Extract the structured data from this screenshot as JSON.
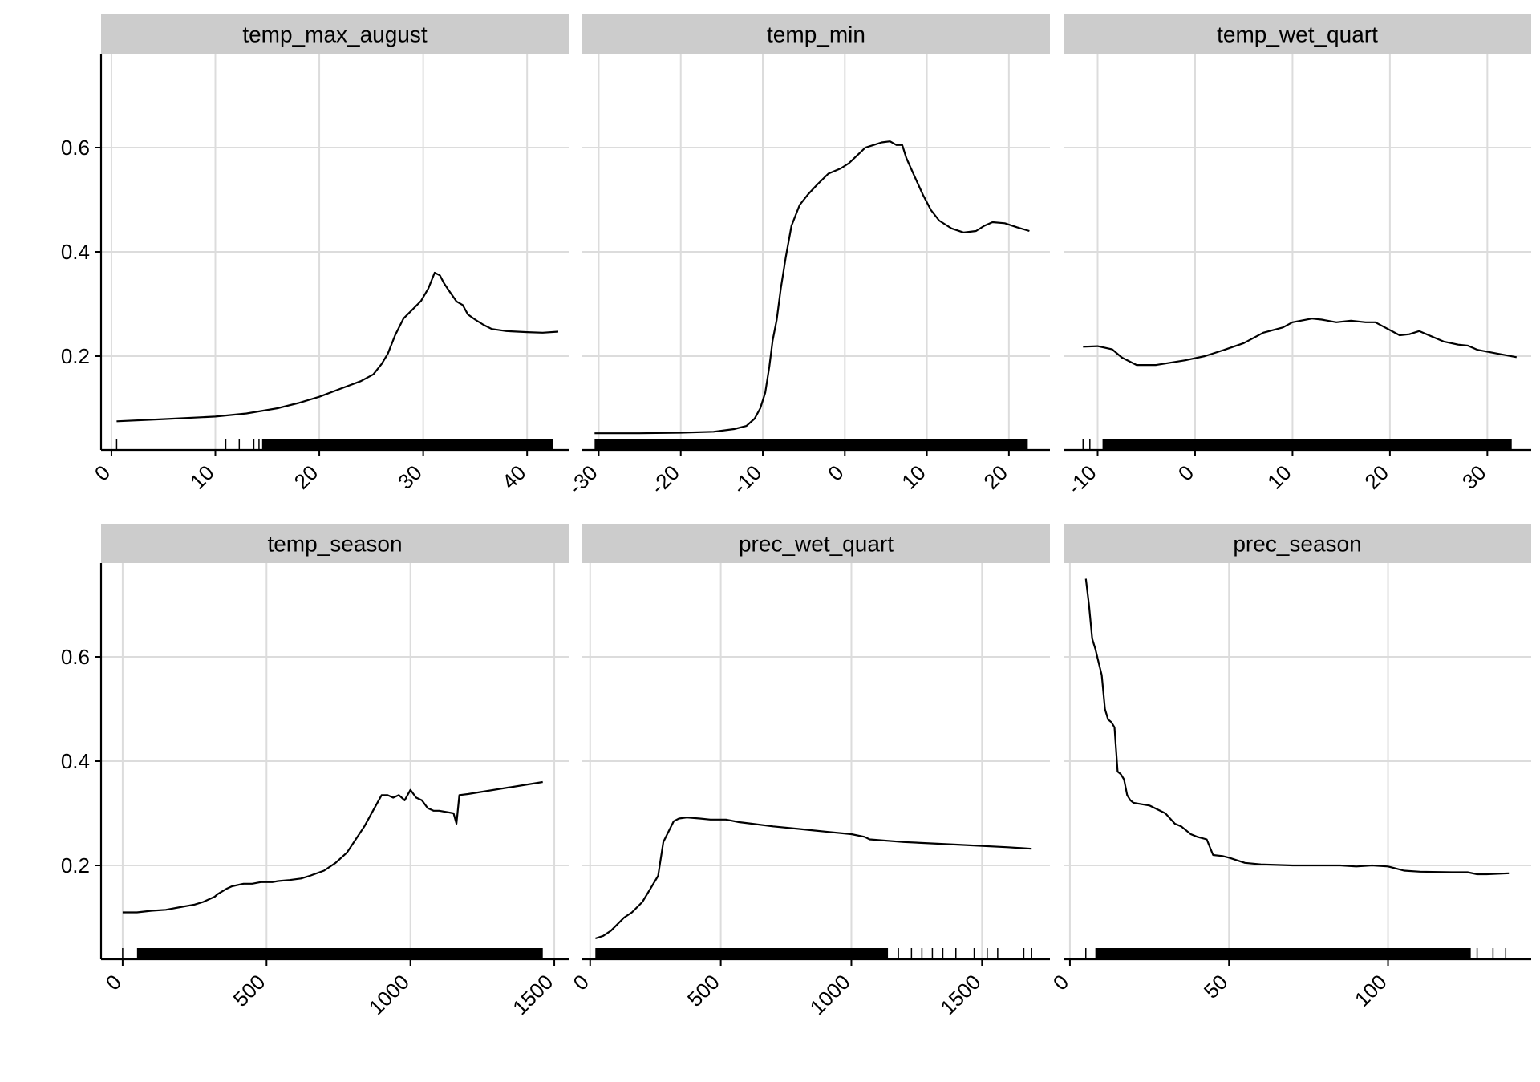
{
  "figure": {
    "background": "#ffffff",
    "strip_fill": "#cccccc",
    "grid_color": "#dcdcdc",
    "line_color": "#000000"
  },
  "chart_data": [
    {
      "type": "line",
      "title": "temp_max_august",
      "xlim": [
        -1,
        44
      ],
      "ylim": [
        0.02,
        0.78
      ],
      "xticks": [
        0,
        10,
        20,
        30,
        40
      ],
      "xtick_labels": [
        "0",
        "10",
        "20",
        "30",
        "40"
      ],
      "yticks": [
        0.2,
        0.4,
        0.6
      ],
      "ytick_labels": [
        "0.2",
        "0.4",
        "0.6"
      ],
      "rug_range": [
        14.5,
        42.5
      ],
      "rug_extra": [
        0.5,
        11,
        12.3,
        13.7,
        14.2
      ],
      "x": [
        0.5,
        5,
        10,
        13,
        16,
        18,
        20,
        22,
        24,
        25.2,
        26,
        26.6,
        27.3,
        28.1,
        29,
        29.8,
        30.5,
        31.1,
        31.6,
        32,
        32.5,
        33.2,
        33.8,
        34.3,
        35,
        35.8,
        36.6,
        38,
        40,
        41.5,
        43
      ],
      "y": [
        0.075,
        0.079,
        0.084,
        0.09,
        0.1,
        0.11,
        0.122,
        0.137,
        0.152,
        0.165,
        0.185,
        0.205,
        0.24,
        0.272,
        0.29,
        0.306,
        0.33,
        0.36,
        0.355,
        0.34,
        0.325,
        0.305,
        0.298,
        0.28,
        0.27,
        0.26,
        0.252,
        0.248,
        0.246,
        0.245,
        0.247
      ]
    },
    {
      "type": "line",
      "title": "temp_min",
      "xlim": [
        -32,
        25
      ],
      "ylim": [
        0.02,
        0.78
      ],
      "xticks": [
        -30,
        -20,
        -10,
        0,
        10,
        20
      ],
      "xtick_labels": [
        "-30",
        "-20",
        "-10",
        "0",
        "10",
        "20"
      ],
      "yticks": [
        0.2,
        0.4,
        0.6
      ],
      "ytick_labels": [
        "0.2",
        "0.4",
        "0.6"
      ],
      "rug_range": [
        -30.5,
        22.3
      ],
      "rug_extra": [],
      "x": [
        -30.5,
        -25,
        -20,
        -16,
        -13.5,
        -12,
        -11,
        -10.3,
        -9.7,
        -9.2,
        -8.8,
        -8.3,
        -7.8,
        -7.2,
        -6.5,
        -5.5,
        -4.5,
        -3.3,
        -2,
        -0.5,
        0.5,
        1.5,
        2.5,
        3.5,
        4.5,
        5.5,
        6.3,
        7,
        7.5,
        8.5,
        9.5,
        10.5,
        11.5,
        13,
        14.5,
        16,
        17,
        18,
        19.5,
        21,
        22.5
      ],
      "y": [
        0.052,
        0.052,
        0.053,
        0.055,
        0.06,
        0.066,
        0.08,
        0.1,
        0.13,
        0.18,
        0.23,
        0.27,
        0.33,
        0.39,
        0.45,
        0.49,
        0.51,
        0.53,
        0.55,
        0.56,
        0.57,
        0.585,
        0.6,
        0.605,
        0.61,
        0.612,
        0.605,
        0.605,
        0.58,
        0.545,
        0.51,
        0.48,
        0.46,
        0.445,
        0.437,
        0.44,
        0.45,
        0.457,
        0.455,
        0.447,
        0.44
      ]
    },
    {
      "type": "line",
      "title": "temp_wet_quart",
      "xlim": [
        -13.5,
        34.5
      ],
      "ylim": [
        0.02,
        0.78
      ],
      "xticks": [
        -10,
        0,
        10,
        20,
        30
      ],
      "xtick_labels": [
        "-10",
        "0",
        "10",
        "20",
        "30"
      ],
      "yticks": [
        0.2,
        0.4,
        0.6
      ],
      "ytick_labels": [
        "0.2",
        "0.4",
        "0.6"
      ],
      "rug_range": [
        -9.5,
        32.5
      ],
      "rug_extra": [
        -11.5,
        -10.8
      ],
      "x": [
        -11.5,
        -10,
        -8.5,
        -7.5,
        -6,
        -4,
        -1,
        1,
        3,
        5,
        7,
        9,
        10,
        12,
        13,
        14.5,
        16,
        17.5,
        18.5,
        19.5,
        21,
        22,
        23,
        24,
        25.5,
        27,
        28,
        29,
        31,
        33
      ],
      "y": [
        0.218,
        0.219,
        0.213,
        0.197,
        0.183,
        0.183,
        0.192,
        0.2,
        0.212,
        0.225,
        0.245,
        0.255,
        0.265,
        0.272,
        0.27,
        0.265,
        0.268,
        0.265,
        0.265,
        0.255,
        0.24,
        0.242,
        0.248,
        0.24,
        0.228,
        0.222,
        0.22,
        0.212,
        0.205,
        0.198
      ]
    },
    {
      "type": "line",
      "title": "temp_season",
      "xlim": [
        -75,
        1550
      ],
      "ylim": [
        0.02,
        0.78
      ],
      "xticks": [
        0,
        500,
        1000,
        1500
      ],
      "xtick_labels": [
        "0",
        "500",
        "1000",
        "1500"
      ],
      "yticks": [
        0.2,
        0.4,
        0.6
      ],
      "ytick_labels": [
        "0.2",
        "0.4",
        "0.6"
      ],
      "rug_range": [
        50,
        1460
      ],
      "rug_extra": [
        0
      ],
      "x": [
        0,
        50,
        100,
        150,
        200,
        250,
        280,
        320,
        330,
        360,
        380,
        420,
        450,
        480,
        520,
        540,
        580,
        620,
        650,
        700,
        740,
        780,
        810,
        840,
        870,
        900,
        920,
        940,
        960,
        980,
        1000,
        1020,
        1040,
        1060,
        1080,
        1100,
        1150,
        1160,
        1170,
        1200,
        1460
      ],
      "y": [
        0.11,
        0.11,
        0.113,
        0.115,
        0.12,
        0.125,
        0.13,
        0.14,
        0.145,
        0.155,
        0.16,
        0.165,
        0.165,
        0.168,
        0.168,
        0.17,
        0.172,
        0.175,
        0.18,
        0.19,
        0.205,
        0.225,
        0.25,
        0.275,
        0.305,
        0.335,
        0.335,
        0.33,
        0.335,
        0.325,
        0.345,
        0.33,
        0.325,
        0.31,
        0.305,
        0.305,
        0.3,
        0.28,
        0.335,
        0.337,
        0.36
      ]
    },
    {
      "type": "line",
      "title": "prec_wet_quart",
      "xlim": [
        -30,
        1760
      ],
      "ylim": [
        0.02,
        0.78
      ],
      "xticks": [
        0,
        500,
        1000,
        1500
      ],
      "xtick_labels": [
        "0",
        "500",
        "1000",
        "1500"
      ],
      "yticks": [
        0.2,
        0.4,
        0.6
      ],
      "ytick_labels": [
        "0.2",
        "0.4",
        "0.6"
      ],
      "rug_range": [
        20,
        1140
      ],
      "rug_extra": [
        1180,
        1230,
        1270,
        1310,
        1350,
        1400,
        1470,
        1520,
        1560,
        1660,
        1690
      ],
      "x": [
        20,
        50,
        80,
        100,
        130,
        160,
        200,
        230,
        260,
        280,
        300,
        320,
        340,
        370,
        420,
        460,
        520,
        570,
        620,
        700,
        800,
        900,
        1000,
        1050,
        1070,
        1200,
        1400,
        1600,
        1690
      ],
      "y": [
        0.06,
        0.065,
        0.075,
        0.085,
        0.1,
        0.11,
        0.13,
        0.155,
        0.18,
        0.245,
        0.265,
        0.285,
        0.29,
        0.292,
        0.29,
        0.288,
        0.288,
        0.283,
        0.28,
        0.275,
        0.27,
        0.265,
        0.26,
        0.255,
        0.25,
        0.245,
        0.24,
        0.235,
        0.232
      ]
    },
    {
      "type": "line",
      "title": "prec_season",
      "xlim": [
        -2,
        145
      ],
      "ylim": [
        0.02,
        0.78
      ],
      "xticks": [
        0,
        50,
        100
      ],
      "xtick_labels": [
        "0",
        "50",
        "100"
      ],
      "yticks": [
        0.2,
        0.4,
        0.6
      ],
      "ytick_labels": [
        "0.2",
        "0.4",
        "0.6"
      ],
      "rug_range": [
        8,
        126
      ],
      "rug_extra": [
        5,
        128,
        133,
        137
      ],
      "x": [
        5,
        6,
        7,
        8,
        9,
        10,
        11,
        12,
        13,
        14,
        15,
        16,
        17,
        18,
        19,
        20,
        22,
        25,
        30,
        33,
        35,
        38,
        40,
        43,
        45,
        48,
        50,
        55,
        60,
        70,
        80,
        85,
        90,
        95,
        100,
        102,
        105,
        110,
        120,
        125,
        128,
        131,
        138
      ],
      "y": [
        0.75,
        0.7,
        0.635,
        0.615,
        0.59,
        0.565,
        0.5,
        0.48,
        0.475,
        0.465,
        0.38,
        0.375,
        0.365,
        0.335,
        0.325,
        0.32,
        0.318,
        0.315,
        0.3,
        0.28,
        0.275,
        0.26,
        0.255,
        0.25,
        0.22,
        0.218,
        0.215,
        0.205,
        0.202,
        0.2,
        0.2,
        0.2,
        0.198,
        0.2,
        0.198,
        0.195,
        0.19,
        0.188,
        0.187,
        0.187,
        0.183,
        0.183,
        0.185
      ]
    }
  ]
}
